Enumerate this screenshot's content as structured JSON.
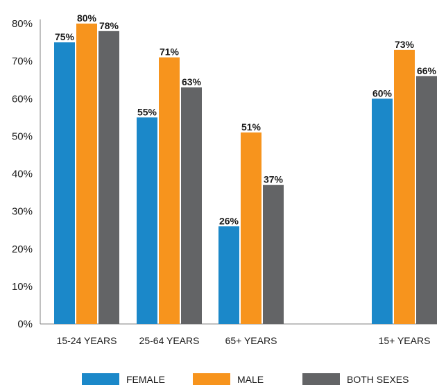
{
  "chart_data": {
    "type": "bar",
    "categories": [
      "15-24 YEARS",
      "25-64 YEARS",
      "65+ YEARS",
      "15+ YEARS"
    ],
    "series": [
      {
        "name": "FEMALE",
        "color": "#1b88c9",
        "values": [
          75,
          55,
          26,
          60
        ]
      },
      {
        "name": "MALE",
        "color": "#f7941d",
        "values": [
          80,
          71,
          51,
          73
        ]
      },
      {
        "name": "BOTH SEXES",
        "color": "#636466",
        "values": [
          78,
          63,
          37,
          66
        ]
      }
    ],
    "data_labels": [
      [
        "75%",
        "55%",
        "26%",
        "60%"
      ],
      [
        "80%",
        "71%",
        "51%",
        "73%"
      ],
      [
        "78%",
        "63%",
        "37%",
        "66%"
      ]
    ],
    "y_ticks": [
      "0%",
      "10%",
      "20%",
      "30%",
      "40%",
      "50%",
      "60%",
      "70%",
      "80%"
    ],
    "ylim": [
      0,
      80
    ],
    "grid": false,
    "legend_position": "bottom"
  }
}
